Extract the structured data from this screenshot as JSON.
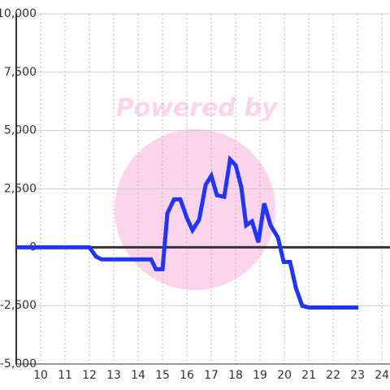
{
  "chart_data": {
    "type": "line",
    "watermark": "Powered by",
    "x": [
      9,
      12,
      12.27,
      12.5,
      14.53,
      14.73,
      15.0,
      15.2,
      15.47,
      15.73,
      16.0,
      16.23,
      16.5,
      16.77,
      17.0,
      17.23,
      17.53,
      17.77,
      18.0,
      18.23,
      18.43,
      18.67,
      18.93,
      19.17,
      19.43,
      19.73,
      19.97,
      20.23,
      20.47,
      20.73,
      21.0,
      23.03
    ],
    "series": [
      {
        "color": "#1f35ff",
        "values": [
          0,
          0,
          -400,
          -520,
          -520,
          -940,
          -940,
          1460,
          2050,
          2050,
          1250,
          730,
          1180,
          2680,
          3060,
          2230,
          2160,
          3760,
          3510,
          2580,
          940,
          1110,
          210,
          1880,
          940,
          420,
          -630,
          -630,
          -1740,
          -2510,
          -2580,
          -2580
        ]
      }
    ],
    "xlim": [
      9,
      24.33
    ],
    "xticks": [
      10,
      11,
      12,
      13,
      14,
      15,
      16,
      17,
      18,
      19,
      20,
      21,
      22,
      23,
      24
    ],
    "ylim": [
      -5000,
      10000
    ],
    "yticks": [
      {
        "value": -5000,
        "label": "-5,000"
      },
      {
        "value": -2500,
        "label": "-2,500"
      },
      0,
      {
        "value": 2500,
        "label": "2,500"
      },
      {
        "value": 5000,
        "label": "5,000"
      },
      {
        "value": 7500,
        "label": "7,500"
      },
      {
        "value": 10000,
        "label": "10,000"
      }
    ],
    "grid": true
  }
}
